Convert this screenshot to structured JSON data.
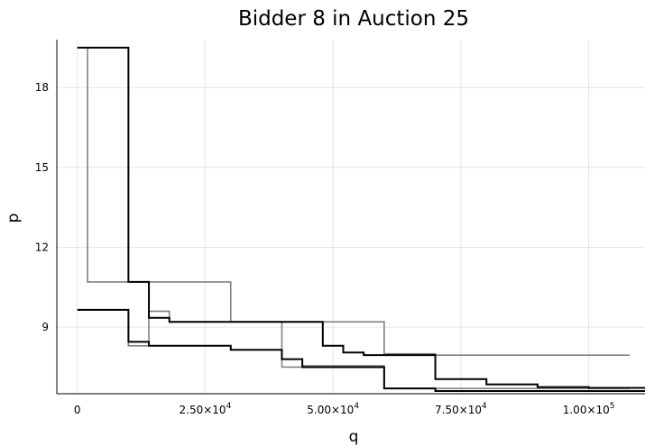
{
  "chart_data": {
    "type": "line",
    "step": "post",
    "title": "Bidder 8 in Auction 25",
    "xlabel": "q",
    "ylabel": "p",
    "xlim": [
      -4000,
      111000
    ],
    "ylim": [
      6.5,
      19.8
    ],
    "grid": true,
    "legend": "none",
    "x_ticks": [
      {
        "value": 0,
        "mantissa": "0",
        "exponent": ""
      },
      {
        "value": 25000,
        "mantissa": "2.50×10",
        "exponent": "4"
      },
      {
        "value": 50000,
        "mantissa": "5.00×10",
        "exponent": "4"
      },
      {
        "value": 75000,
        "mantissa": "7.50×10",
        "exponent": "4"
      },
      {
        "value": 100000,
        "mantissa": "1.00×10",
        "exponent": "5"
      }
    ],
    "y_ticks": [
      {
        "value": 9,
        "label": "9"
      },
      {
        "value": 12,
        "label": "12"
      },
      {
        "value": 15,
        "label": "15"
      },
      {
        "value": 18,
        "label": "18"
      }
    ],
    "series": [
      {
        "color": "#808080",
        "points": [
          [
            0,
            19.5
          ],
          [
            2000,
            19.5
          ],
          [
            2000,
            10.7
          ],
          [
            30000,
            10.7
          ],
          [
            30000,
            9.2
          ],
          [
            60000,
            9.2
          ],
          [
            60000,
            8.0
          ],
          [
            70000,
            8.0
          ],
          [
            70000,
            7.95
          ],
          [
            108000,
            7.95
          ]
        ]
      },
      {
        "color": "#808080",
        "points": [
          [
            0,
            9.65
          ],
          [
            10000,
            9.65
          ],
          [
            10000,
            8.3
          ],
          [
            14000,
            8.3
          ],
          [
            14000,
            9.6
          ],
          [
            18000,
            9.6
          ],
          [
            18000,
            9.2
          ],
          [
            40000,
            9.2
          ],
          [
            40000,
            7.5
          ],
          [
            44000,
            7.5
          ],
          [
            44000,
            7.55
          ],
          [
            60000,
            7.55
          ],
          [
            60000,
            6.7
          ],
          [
            108000,
            6.7
          ]
        ]
      },
      {
        "color": "#000000",
        "points": [
          [
            0,
            19.5
          ],
          [
            10000,
            19.5
          ],
          [
            10000,
            10.7
          ],
          [
            14000,
            10.7
          ],
          [
            14000,
            9.35
          ],
          [
            18000,
            9.35
          ],
          [
            18000,
            9.2
          ],
          [
            48000,
            9.2
          ],
          [
            48000,
            8.3
          ],
          [
            52000,
            8.3
          ],
          [
            52000,
            8.05
          ],
          [
            56000,
            8.05
          ],
          [
            56000,
            7.95
          ],
          [
            70000,
            7.95
          ],
          [
            70000,
            7.05
          ],
          [
            80000,
            7.05
          ],
          [
            80000,
            6.85
          ],
          [
            90000,
            6.85
          ],
          [
            90000,
            6.75
          ],
          [
            100000,
            6.75
          ],
          [
            100000,
            6.72
          ],
          [
            112000,
            6.72
          ]
        ]
      },
      {
        "color": "#000000",
        "points": [
          [
            0,
            9.65
          ],
          [
            10000,
            9.65
          ],
          [
            10000,
            8.45
          ],
          [
            14000,
            8.45
          ],
          [
            14000,
            8.3
          ],
          [
            30000,
            8.3
          ],
          [
            30000,
            8.15
          ],
          [
            40000,
            8.15
          ],
          [
            40000,
            7.8
          ],
          [
            44000,
            7.8
          ],
          [
            44000,
            7.5
          ],
          [
            60000,
            7.5
          ],
          [
            60000,
            6.7
          ],
          [
            70000,
            6.7
          ],
          [
            70000,
            6.6
          ],
          [
            112000,
            6.6
          ]
        ]
      }
    ]
  }
}
